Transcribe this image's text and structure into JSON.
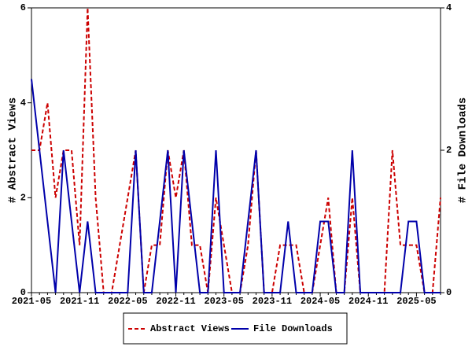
{
  "chart_data": {
    "type": "line",
    "categories": [
      "2021-05",
      null,
      null,
      null,
      null,
      null,
      "2021-11",
      null,
      null,
      null,
      null,
      null,
      "2022-05",
      null,
      null,
      null,
      null,
      null,
      "2022-11",
      null,
      null,
      null,
      null,
      null,
      "2023-05",
      null,
      null,
      null,
      null,
      null,
      "2023-11",
      null,
      null,
      null,
      null,
      null,
      "2024-05",
      null,
      null,
      null,
      null,
      null,
      "2024-11",
      null,
      null,
      null,
      null,
      null,
      "2025-05",
      null,
      null,
      null
    ],
    "ylabel": "# Abstract Views",
    "y2label": "# File Downloads",
    "ylim": [
      0,
      6
    ],
    "yticks": [
      0,
      2,
      4,
      6
    ],
    "y2lim": [
      0,
      4
    ],
    "y2ticks": [
      0,
      2,
      4
    ],
    "legend": "bottom",
    "series": [
      {
        "name": "Abstract Views",
        "color": "#cc0000",
        "dash": true,
        "values": [
          3,
          3,
          4,
          2,
          3,
          3,
          1,
          6,
          2,
          0,
          0,
          1,
          2,
          3,
          0,
          1,
          1,
          3,
          2,
          3,
          1,
          1,
          0,
          2,
          1,
          0,
          0,
          1,
          3,
          0,
          0,
          1,
          1,
          1,
          0,
          0,
          1,
          2,
          0,
          0,
          2,
          0,
          0,
          0,
          0,
          3,
          1,
          1,
          1,
          0,
          0,
          2
        ]
      },
      {
        "name": "File Downloads",
        "color": "#0000aa",
        "axis": "y2",
        "values": [
          3,
          2,
          1,
          0,
          2,
          1,
          0,
          1,
          0,
          0,
          0,
          0,
          0,
          2,
          0,
          0,
          1,
          2,
          0,
          2,
          1,
          0,
          0,
          2,
          0,
          0,
          0,
          1,
          2,
          0,
          0,
          0,
          1,
          0,
          0,
          0,
          1,
          1,
          0,
          0,
          2,
          0,
          0,
          0,
          0,
          0,
          0,
          1,
          1,
          0,
          0,
          0
        ]
      }
    ]
  }
}
